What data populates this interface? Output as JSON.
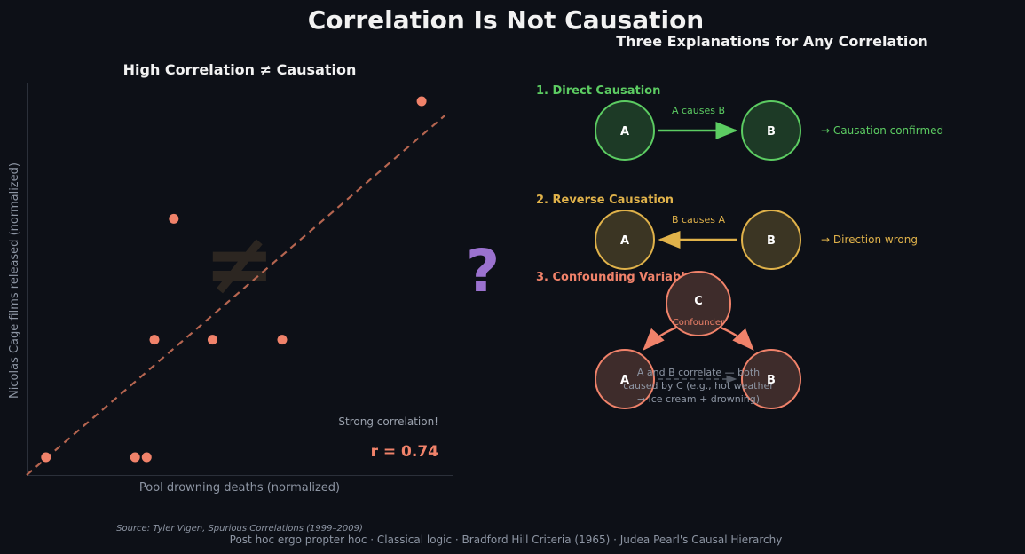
{
  "title": "Correlation Is Not Causation",
  "colors": {
    "background": "#0d1017",
    "green": "#5ccc62",
    "yellow": "#e0b24a",
    "red": "#f0826a",
    "purple": "#9b72cf",
    "muted": "#8d95a3",
    "white": "#ffffff"
  },
  "scatter": {
    "title": "High Correlation ≠ Causation",
    "watermark": "≠",
    "annotation": "Strong correlation!",
    "r_label": "r = 0.74",
    "source": "Source: Tyler Vigen, Spurious Correlations (1999–2009)"
  },
  "chart_data": {
    "type": "scatter",
    "title": "High Correlation ≠ Causation",
    "xlabel": "Pool drowning deaths (normalized)",
    "ylabel": "Nicolas Cage films released (normalized)",
    "xlim": [
      -0.05,
      1.05
    ],
    "ylim": [
      -0.05,
      1.05
    ],
    "grid": false,
    "points": [
      {
        "x": 0.0,
        "y": 0.0
      },
      {
        "x": 0.23,
        "y": 0.0
      },
      {
        "x": 0.26,
        "y": 0.0
      },
      {
        "x": 0.33,
        "y": 0.67
      },
      {
        "x": 0.28,
        "y": 0.33
      },
      {
        "x": 0.43,
        "y": 0.33
      },
      {
        "x": 0.61,
        "y": 0.33
      },
      {
        "x": 0.97,
        "y": 1.0
      }
    ],
    "trendline": {
      "x": [
        -0.05,
        1.03
      ],
      "y": [
        -0.05,
        0.96
      ],
      "style": "dashed"
    },
    "r": 0.74
  },
  "question_mark": "?",
  "explanations": {
    "title": "Three Explanations for Any Correlation",
    "direct": {
      "heading": "1.  Direct Causation",
      "node_a": "A",
      "node_b": "B",
      "arrow_label": "A causes B",
      "verdict": "→  Causation confirmed"
    },
    "reverse": {
      "heading": "2.  Reverse Causation",
      "node_a": "A",
      "node_b": "B",
      "arrow_label": "B causes A",
      "verdict": "→  Direction wrong"
    },
    "confounding": {
      "heading": "3.  Confounding Variable",
      "node_c": "C",
      "node_c_label": "Confounder",
      "node_a": "A",
      "node_b": "B",
      "note_line1": "A and B correlate — both",
      "note_line2": "caused by C (e.g., hot weather",
      "note_line3": "→ ice cream + drowning)"
    }
  },
  "footer": "Post hoc ergo propter hoc  ·  Classical logic  ·  Bradford Hill Criteria (1965)  ·  Judea Pearl's Causal Hierarchy"
}
